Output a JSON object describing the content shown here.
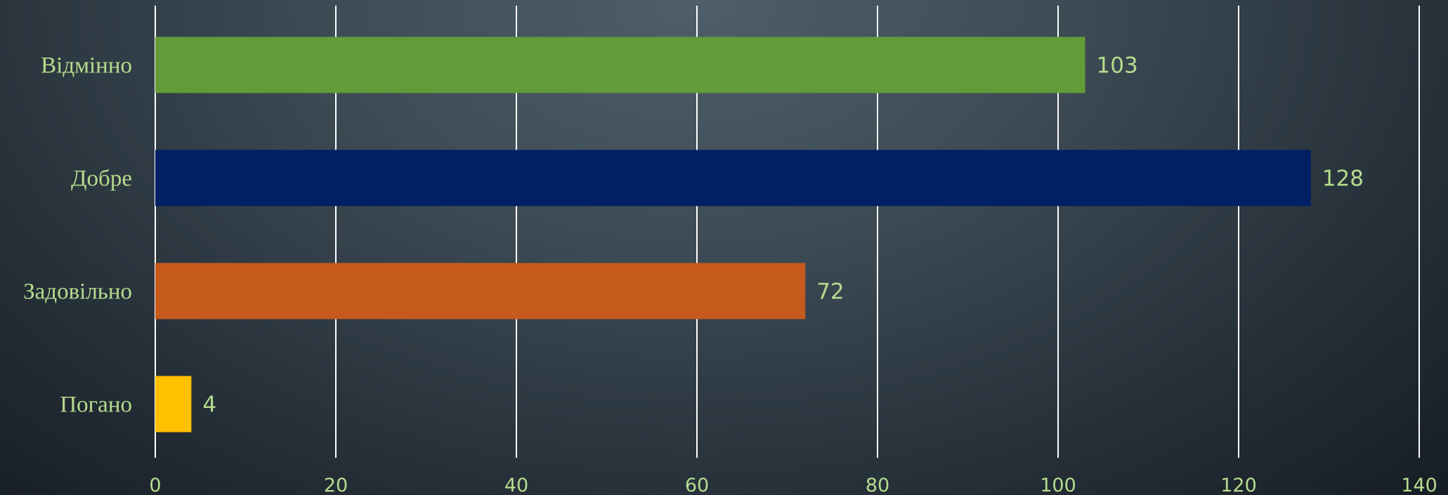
{
  "chart_data": {
    "type": "bar",
    "orientation": "horizontal",
    "title": "",
    "xlabel": "",
    "ylabel": "",
    "categories": [
      "Відмінно",
      "Добре",
      "Задовільно",
      "Погано"
    ],
    "values": [
      103,
      128,
      72,
      4
    ],
    "colors": [
      "#629b38",
      "#001f64",
      "#c55a1c",
      "#ffc000"
    ],
    "xlim": [
      0,
      140
    ],
    "xticks": [
      "0",
      "20",
      "40",
      "60",
      "80",
      "100",
      "120",
      "140"
    ],
    "grid": "vertical",
    "legend": "none",
    "data_labels": [
      "103",
      "128",
      "72",
      "4"
    ]
  }
}
